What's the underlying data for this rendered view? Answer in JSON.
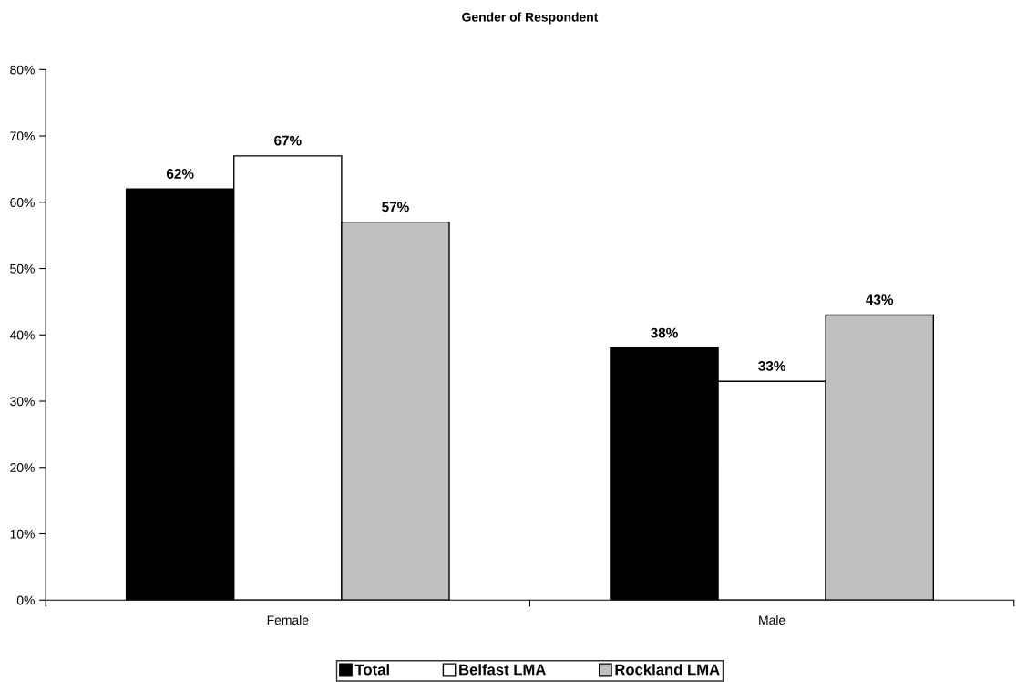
{
  "chart_data": {
    "type": "bar",
    "title": "Gender of Respondent",
    "categories": [
      "Female",
      "Male"
    ],
    "series": [
      {
        "name": "Total",
        "color": "#000000",
        "values": [
          62,
          38
        ],
        "value_labels": [
          "62%",
          "38%"
        ]
      },
      {
        "name": "Belfast LMA",
        "color": "#ffffff",
        "values": [
          67,
          33
        ],
        "value_labels": [
          "67%",
          "33%"
        ]
      },
      {
        "name": "Rockland LMA",
        "color": "#c0c0c0",
        "values": [
          57,
          43
        ],
        "value_labels": [
          "57%",
          "43%"
        ]
      }
    ],
    "ylim": [
      0,
      80
    ],
    "yticks": [
      {
        "value": 0,
        "label": "0%"
      },
      {
        "value": 10,
        "label": "10%"
      },
      {
        "value": 20,
        "label": "20%"
      },
      {
        "value": 30,
        "label": "30%"
      },
      {
        "value": 40,
        "label": "40%"
      },
      {
        "value": 50,
        "label": "50%"
      },
      {
        "value": 60,
        "label": "60%"
      },
      {
        "value": 70,
        "label": "70%"
      },
      {
        "value": 80,
        "label": "80%"
      }
    ],
    "grid": false,
    "legend": "bottom"
  }
}
